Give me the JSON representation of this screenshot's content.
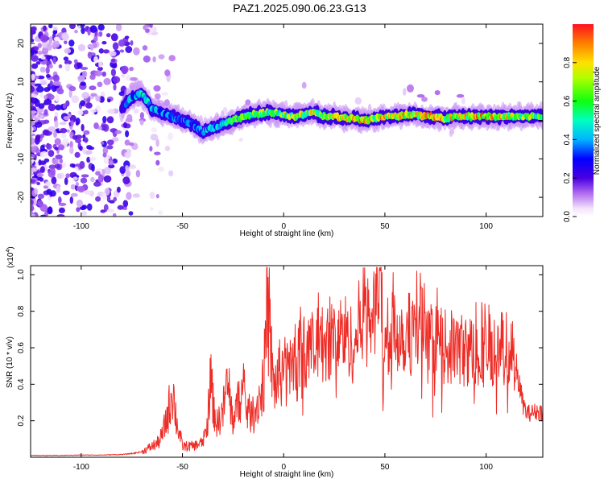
{
  "figure": {
    "title": "PAZ1.2025.090.06.23.G13"
  },
  "colors": {
    "snr_line": "#ee2b25",
    "background": "#ffffff",
    "colormap": [
      "#f3e6fb",
      "#d6a8f0",
      "#9b34e6",
      "#5a00e6",
      "#0000ff",
      "#00d4ff",
      "#00ffa0",
      "#33ff00",
      "#f0ff00",
      "#ffb000",
      "#ff2600"
    ]
  },
  "chart_data": [
    {
      "type": "heatmap",
      "title": "PAZ1.2025.090.06.23.G13",
      "xlabel": "Height of straight line (km)",
      "ylabel": "Frequency (Hz)",
      "xlim": [
        -125,
        128
      ],
      "ylim": [
        -25,
        25
      ],
      "x_ticks": [
        -100,
        -50,
        0,
        50,
        100
      ],
      "x_tick_labels": [
        "-100",
        "-50",
        "0",
        "50",
        "100"
      ],
      "y_ticks": [
        -20,
        -10,
        0,
        10,
        20
      ],
      "y_tick_labels": [
        "-20",
        "-10",
        "0",
        "10",
        "20"
      ],
      "colorbar": {
        "label": "Normalized spectral amplitude",
        "range": [
          0,
          1
        ],
        "ticks": [
          0.0,
          0.2,
          0.4,
          0.6,
          0.8
        ],
        "tick_labels": [
          "0.0",
          "0.2",
          "0.4",
          "0.6",
          "0.8"
        ]
      },
      "ridge": {
        "x": [
          -125,
          -110,
          -100,
          -90,
          -80,
          -75,
          -70,
          -65,
          -60,
          -55,
          -50,
          -45,
          -40,
          -35,
          -30,
          -25,
          -20,
          -15,
          -10,
          -5,
          0,
          5,
          10,
          15,
          20,
          25,
          30,
          35,
          40,
          45,
          50,
          55,
          60,
          65,
          70,
          75,
          80,
          85,
          90,
          95,
          100,
          105,
          110,
          115,
          120,
          128
        ],
        "frequency": [
          6,
          5,
          4,
          5,
          3,
          6,
          7,
          3,
          2,
          1,
          0,
          -1,
          -3,
          -2,
          -1,
          0,
          1,
          1.5,
          2,
          2,
          1.5,
          1,
          1.5,
          2,
          1,
          1,
          0.5,
          0.5,
          0,
          0.5,
          1,
          1,
          1.5,
          1.5,
          1,
          1,
          0.5,
          1,
          1,
          1,
          1,
          1,
          1,
          1,
          1,
          1
        ],
        "amplitude": [
          0.25,
          0.25,
          0.3,
          0.35,
          0.4,
          0.45,
          0.5,
          0.5,
          0.45,
          0.4,
          0.4,
          0.4,
          0.45,
          0.5,
          0.55,
          0.65,
          0.7,
          0.75,
          0.75,
          0.8,
          0.8,
          0.8,
          0.8,
          0.85,
          0.85,
          0.85,
          0.9,
          0.9,
          0.9,
          0.9,
          0.9,
          0.9,
          0.9,
          0.9,
          0.9,
          0.9,
          0.9,
          0.9,
          0.9,
          0.95,
          0.95,
          0.9,
          0.9,
          0.85,
          0.8,
          0.75
        ]
      }
    },
    {
      "type": "line",
      "xlabel": "Height of straight line (km)",
      "ylabel": "SNR (10 * v/v)",
      "y_multiplier": "(x10^4)",
      "xlim": [
        -125,
        128
      ],
      "ylim": [
        0,
        1.05
      ],
      "x_ticks": [
        -100,
        -50,
        0,
        50,
        100
      ],
      "x_tick_labels": [
        "-100",
        "-50",
        "0",
        "50",
        "100"
      ],
      "y_ticks": [
        0.2,
        0.4,
        0.6,
        0.8,
        1.0
      ],
      "y_tick_labels": [
        "0.2",
        "0.4",
        "0.6",
        "0.8",
        "1.0"
      ],
      "series": [
        {
          "color": "#ee2b25",
          "x": [
            -125,
            -110,
            -100,
            -90,
            -80,
            -75,
            -70,
            -65,
            -62,
            -60,
            -58,
            -56,
            -55,
            -53,
            -50,
            -45,
            -40,
            -38,
            -36,
            -35,
            -33,
            -30,
            -28,
            -25,
            -22,
            -20,
            -18,
            -15,
            -12,
            -10,
            -8,
            -5,
            -2,
            0,
            2,
            5,
            8,
            10,
            15,
            20,
            25,
            30,
            35,
            40,
            45,
            47,
            50,
            55,
            60,
            65,
            68,
            70,
            75,
            80,
            85,
            90,
            95,
            100,
            105,
            110,
            113,
            115,
            118,
            120,
            125,
            128
          ],
          "y": [
            0.01,
            0.01,
            0.012,
            0.012,
            0.015,
            0.02,
            0.03,
            0.06,
            0.08,
            0.12,
            0.2,
            0.3,
            0.4,
            0.2,
            0.06,
            0.06,
            0.08,
            0.15,
            0.45,
            0.3,
            0.18,
            0.25,
            0.4,
            0.2,
            0.32,
            0.35,
            0.25,
            0.22,
            0.33,
            0.38,
            0.82,
            0.38,
            0.45,
            0.5,
            0.48,
            0.52,
            0.55,
            0.58,
            0.6,
            0.62,
            0.65,
            0.68,
            0.6,
            0.88,
            0.75,
            1.02,
            0.6,
            0.7,
            0.68,
            0.68,
            0.8,
            0.6,
            0.62,
            0.6,
            0.6,
            0.58,
            0.58,
            0.58,
            0.6,
            0.6,
            0.58,
            0.48,
            0.3,
            0.24,
            0.25,
            0.25
          ]
        }
      ]
    }
  ]
}
